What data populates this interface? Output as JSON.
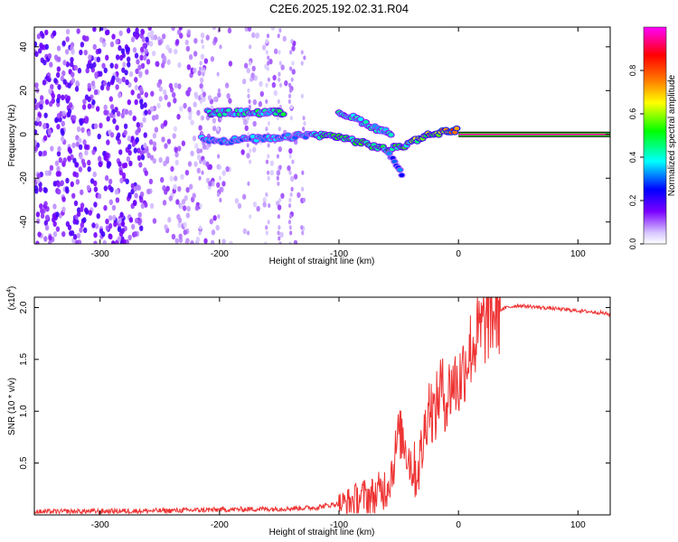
{
  "figure": {
    "title": "C2E6.2025.192.02.31.R04"
  },
  "chart_data": [
    {
      "type": "heatmap",
      "xlabel": "Height of straight line (km)",
      "ylabel": "Frequency (Hz)",
      "xlim": [
        -355,
        127
      ],
      "ylim": [
        -50,
        49
      ],
      "xticks": [
        -300,
        -200,
        -100,
        0,
        100
      ],
      "yticks": [
        -40,
        -20,
        0,
        20,
        40
      ],
      "colorbar": {
        "label": "Normalized spectral amplitude",
        "range": [
          0.0,
          1.0
        ],
        "ticks": [
          0.0,
          0.2,
          0.4,
          0.6,
          0.8
        ],
        "tick_labels": [
          "0.0",
          "0.2",
          "0.4",
          "0.6",
          "0.8"
        ],
        "colors": [
          "#ffffff",
          "#7b00ff",
          "#0000ff",
          "#00ffff",
          "#00ff00",
          "#ffff00",
          "#ff8000",
          "#ff0000",
          "#ff00ff"
        ]
      },
      "features": [
        {
          "description": "carrier line",
          "x_range": [
            0,
            127
          ],
          "frequency": 0,
          "amplitude": 0.95
        },
        {
          "description": "main trace",
          "points": [
            [
              -215,
              -2
            ],
            [
              -195,
              -3
            ],
            [
              -175,
              -2
            ],
            [
              -150,
              -2
            ],
            [
              -125,
              0
            ],
            [
              -100,
              -1
            ],
            [
              -80,
              -4
            ],
            [
              -60,
              -7
            ],
            [
              -45,
              -5
            ],
            [
              -30,
              -1
            ],
            [
              -15,
              1
            ],
            [
              0,
              2
            ]
          ]
        },
        {
          "description": "upper branch",
          "points": [
            [
              -210,
              10
            ],
            [
              -185,
              10
            ],
            [
              -165,
              10
            ],
            [
              -145,
              10
            ]
          ]
        },
        {
          "description": "upper-right branch",
          "points": [
            [
              -100,
              10
            ],
            [
              -85,
              7
            ],
            [
              -70,
              3
            ],
            [
              -55,
              0
            ]
          ]
        },
        {
          "description": "lower spur",
          "points": [
            [
              -58,
              -8
            ],
            [
              -52,
              -14
            ],
            [
              -46,
              -20
            ]
          ]
        },
        {
          "description": "noise region",
          "x_range": [
            -355,
            -130
          ],
          "y_range": [
            -50,
            49
          ]
        }
      ]
    },
    {
      "type": "line",
      "xlabel": "Height of straight line (km)",
      "ylabel": "SNR (10 * v/v)",
      "y_scale_label": "(x10",
      "y_scale_exponent": "4",
      "xlim": [
        -355,
        127
      ],
      "ylim": [
        0,
        21000
      ],
      "xticks": [
        -300,
        -200,
        -100,
        0,
        100
      ],
      "yticks": [
        5000,
        10000,
        15000,
        20000
      ],
      "ytick_labels": [
        "0.5",
        "1.0",
        "1.5",
        "2.0"
      ],
      "series": [
        {
          "color": "#ee3333",
          "x": [
            -355,
            -300,
            -250,
            -200,
            -150,
            -120,
            -100,
            -90,
            -80,
            -70,
            -60,
            -55,
            -50,
            -45,
            -40,
            -35,
            -30,
            -25,
            -20,
            -15,
            -10,
            -5,
            0,
            5,
            10,
            15,
            20,
            25,
            30,
            40,
            50,
            60,
            70,
            80,
            90,
            100,
            110,
            120,
            127
          ],
          "y": [
            200,
            250,
            300,
            400,
            500,
            600,
            1000,
            1300,
            1800,
            1800,
            2800,
            4500,
            8000,
            7000,
            5000,
            4000,
            6500,
            11000,
            9500,
            12500,
            11000,
            13000,
            12500,
            14500,
            16000,
            17000,
            18000,
            19000,
            19500,
            20000,
            20200,
            20100,
            20000,
            19900,
            19800,
            19700,
            19600,
            19500,
            19300
          ]
        }
      ]
    }
  ]
}
